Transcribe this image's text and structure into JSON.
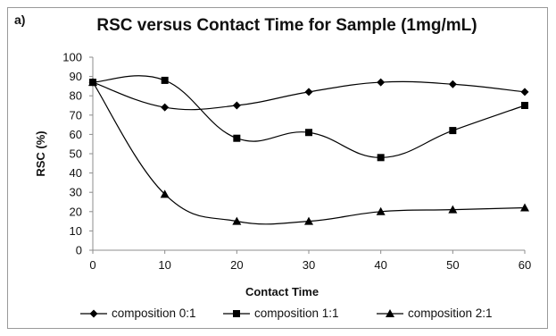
{
  "panel_label": "a)",
  "chart_data": {
    "type": "line",
    "title": "RSC versus Contact Time for Sample (1mg/mL)",
    "xlabel": "Contact Time",
    "ylabel": "RSC (%)",
    "x": [
      0,
      10,
      20,
      30,
      40,
      50,
      60
    ],
    "xlim": [
      0,
      60
    ],
    "ylim": [
      0,
      100
    ],
    "y_ticks": [
      0,
      10,
      20,
      30,
      40,
      50,
      60,
      70,
      80,
      90,
      100
    ],
    "x_ticks": [
      0,
      10,
      20,
      30,
      40,
      50,
      60
    ],
    "grid": false,
    "smooth": true,
    "legend_position": "bottom",
    "series": [
      {
        "name": "composition 0:1",
        "marker": "diamond",
        "color": "#000000",
        "values": [
          87,
          74,
          75,
          82,
          87,
          86,
          82
        ]
      },
      {
        "name": "composition 1:1",
        "marker": "square",
        "color": "#000000",
        "values": [
          87,
          88,
          58,
          61,
          48,
          62,
          75
        ]
      },
      {
        "name": "composition 2:1",
        "marker": "triangle",
        "color": "#000000",
        "values": [
          87,
          29,
          15,
          15,
          20,
          21,
          22
        ]
      }
    ]
  }
}
